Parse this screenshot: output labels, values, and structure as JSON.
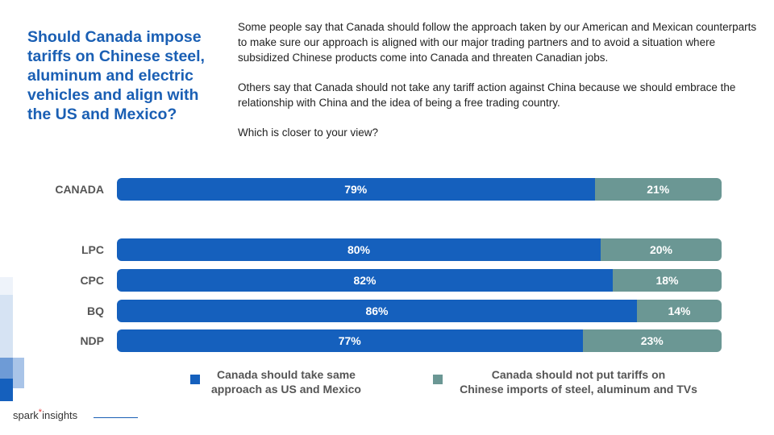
{
  "title": "Should Canada impose tariffs on Chinese steel, aluminum and electric vehicles and align with the US and Mexico?",
  "intro": {
    "p1": "Some people say that Canada should follow the approach taken by our American and Mexican counterparts to make sure our approach is aligned with our major trading partners and to avoid a situation where subsidized Chinese products come into Canada and threaten Canadian jobs.",
    "p2": "Others say that Canada should not take any tariff action against China because we should embrace the relationship with China and the idea of being a free trading country.",
    "p3": "Which is closer to your view?"
  },
  "colors": {
    "series1": "#1560bd",
    "series2": "#6b9794",
    "title": "#1a5fb4"
  },
  "chart_data": {
    "type": "bar",
    "orientation": "horizontal-stacked-100",
    "categories": [
      "CANADA",
      "LPC",
      "CPC",
      "BQ",
      "NDP"
    ],
    "series": [
      {
        "name": "Canada should take same approach as US and Mexico",
        "values": [
          79,
          80,
          82,
          86,
          77
        ],
        "labels": [
          "79%",
          "80%",
          "82%",
          "86%",
          "77%"
        ]
      },
      {
        "name": "Canada should not put tariffs on Chinese imports of steel, aluminum and TVs",
        "values": [
          21,
          20,
          18,
          14,
          23
        ],
        "labels": [
          "21%",
          "20%",
          "18%",
          "14%",
          "23%"
        ]
      }
    ],
    "xlim": [
      0,
      100
    ],
    "legend": "bottom"
  },
  "legend": {
    "item1": {
      "line1": "Canada should take same",
      "line2": "approach as US and Mexico"
    },
    "item2": {
      "line1": "Canada should not put tariffs on",
      "line2": "Chinese imports of steel, aluminum and TVs"
    }
  },
  "logo": {
    "part1": "spark",
    "part2": "insights"
  }
}
